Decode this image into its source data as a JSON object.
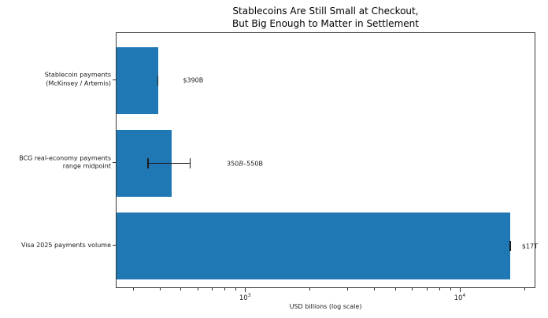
{
  "chart_data": {
    "type": "bar",
    "orientation": "horizontal",
    "title": "Stablecoins Are Still Small at Checkout,\nBut Big Enough to Matter in Settlement",
    "xlabel": "USD billions (log scale)",
    "x_scale": "log",
    "xlim": [
      250,
      22500
    ],
    "grid": false,
    "legend": "none",
    "bar_color": "#1f77b4",
    "error_color": "#1c1c1c",
    "series": [
      {
        "category": "Stablecoin payments\n(McKinsey / Artemis)",
        "value": 390,
        "error_range": [
          390,
          390
        ],
        "annotation_html": "$390B",
        "annotation_text": "$390B",
        "annotation_x": 510
      },
      {
        "category": "BCG real-economy payments\nrange midpoint",
        "value": 450,
        "error_range": [
          350,
          550
        ],
        "annotation_html": "350<i>B</i>–550B",
        "annotation_text": "350B–550B",
        "annotation_x": 815
      },
      {
        "category": "Visa 2025 payments volume",
        "value": 17000,
        "error_range": [
          17000,
          17000
        ],
        "annotation_html": "$17T",
        "annotation_text": "$17T",
        "annotation_x": 19300
      }
    ],
    "x_major_ticks": [
      {
        "value": 1000,
        "base": "10",
        "exp": "3"
      },
      {
        "value": 10000,
        "base": "10",
        "exp": "4"
      }
    ],
    "x_minor_ticks": [
      300,
      400,
      500,
      600,
      700,
      800,
      900,
      2000,
      3000,
      4000,
      5000,
      6000,
      7000,
      8000,
      9000,
      20000
    ]
  }
}
